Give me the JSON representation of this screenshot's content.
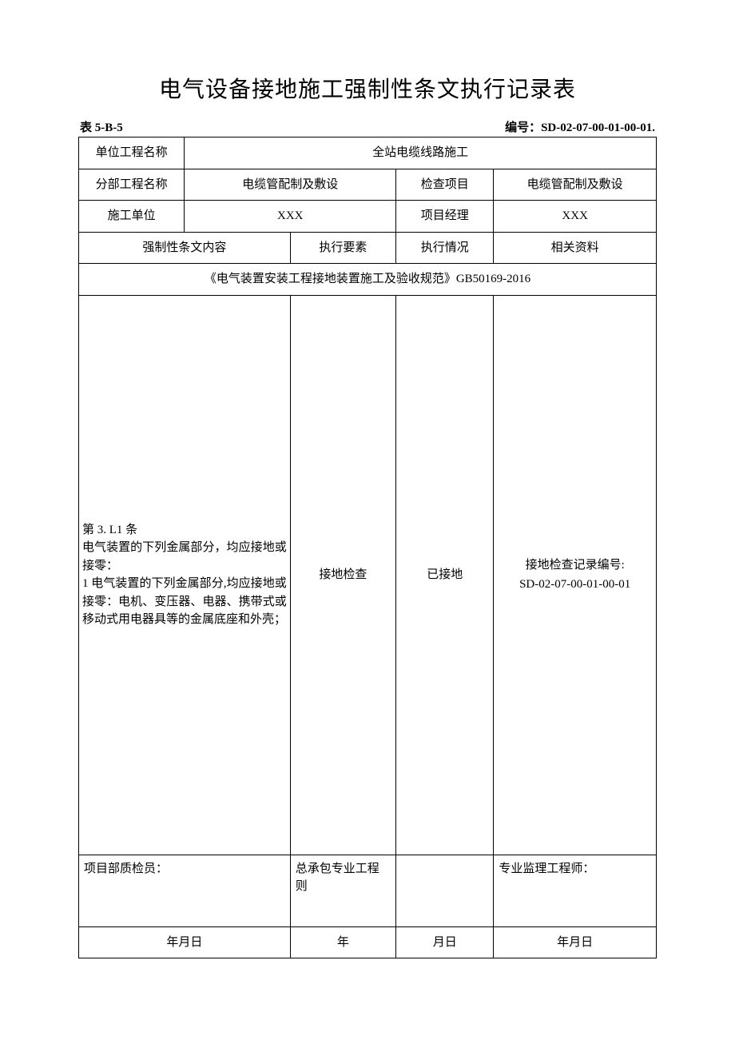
{
  "title": "电气设备接地施工强制性条文执行记录表",
  "meta": {
    "table_no_label": "表 5-B-5",
    "doc_no_label": "编号：",
    "doc_no_value": "SD-02-07-00-01-00-01."
  },
  "header": {
    "unit_project_label": "单位工程名称",
    "unit_project_value": "全站电缆线路施工",
    "subproject_label": "分部工程名称",
    "subproject_value": "电缆管配制及敷设",
    "check_item_label": "检查项目",
    "check_item_value": "电缆管配制及敷设",
    "construction_unit_label": "施工单位",
    "construction_unit_value": "XXX",
    "pm_label": "项目经理",
    "pm_value": "XXX",
    "provision_label": "强制性条文内容",
    "element_label": "执行要素",
    "status_label": "执行情况",
    "related_label": "相关资料",
    "standard_ref": "《电气装置安装工程接地装置施工及验收规范》GB50169-2016"
  },
  "body": {
    "provision_text": "第 3. L1 条\n电气装置的下列金属部分，均应接地或接零：\n1 电气装置的下列金属部分,均应接地或接零：电机、变压器、电器、携带式或移动式用电器具等的金属底座和外壳；",
    "element_value": "接地检查",
    "status_value": "已接地",
    "related_line1": "接地检查记录编号:",
    "related_line2": "SD-02-07-00-01-00-01"
  },
  "signatures": {
    "qc_label": "项目部质检员：",
    "contractor_label": "总承包专业工程则",
    "supervisor_label": "专业监理工程师：",
    "date1": "年月日",
    "date2": "年",
    "date3": "月日",
    "date4": "年月日"
  },
  "style": {
    "bg": "#ffffff",
    "border": "#000000",
    "text": "#000000",
    "title_fontsize": 28,
    "body_fontsize": 15
  }
}
